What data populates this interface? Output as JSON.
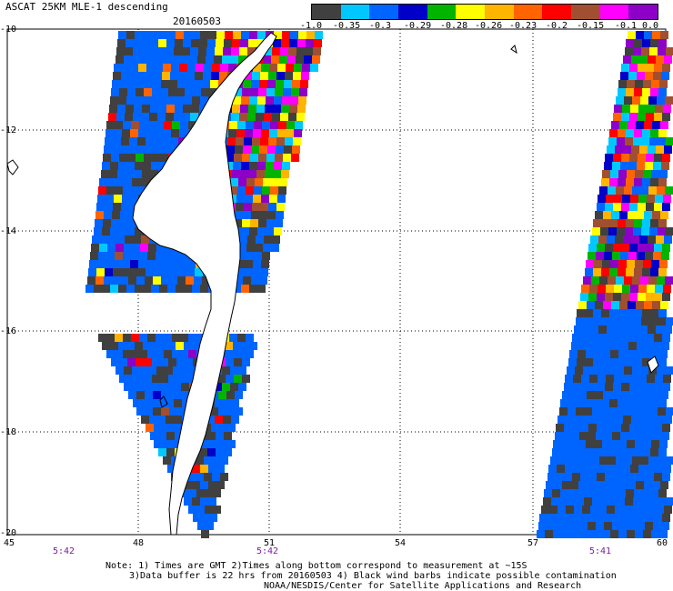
{
  "header": {
    "title": "ASCAT 25KM MLE-1 descending",
    "date": "20160503"
  },
  "legend": {
    "colors": [
      "#404040",
      "#00c8ff",
      "#0064ff",
      "#0000c8",
      "#00b400",
      "#ffff00",
      "#ffb400",
      "#ff6400",
      "#ff0000",
      "#a05030",
      "#ff00ff",
      "#8c00c8"
    ],
    "ticks": [
      "-1.0",
      "-0.35",
      "-0.3",
      "-0.29",
      "-0.28",
      "-0.26",
      "-0.23",
      "-0.2",
      "-0.15",
      "-0.1",
      "0.0"
    ]
  },
  "axes": {
    "lat_labels": [
      "-10",
      "-12",
      "-14",
      "-16",
      "-18",
      "-20"
    ],
    "lon_labels": [
      "45",
      "48",
      "51",
      "54",
      "57",
      "60"
    ],
    "times": [
      "5:42",
      "5:42",
      "5:41"
    ]
  },
  "notes": {
    "line1": "Note: 1) Times are GMT 2)Times along bottom correspond to measurement at ~15S",
    "line2": "3)Data buffer is 22 hrs from 20160503 4) Black wind barbs indicate possible contamination",
    "line3": "NOAA/NESDIS/Center for Satellite Applications and Research"
  }
}
